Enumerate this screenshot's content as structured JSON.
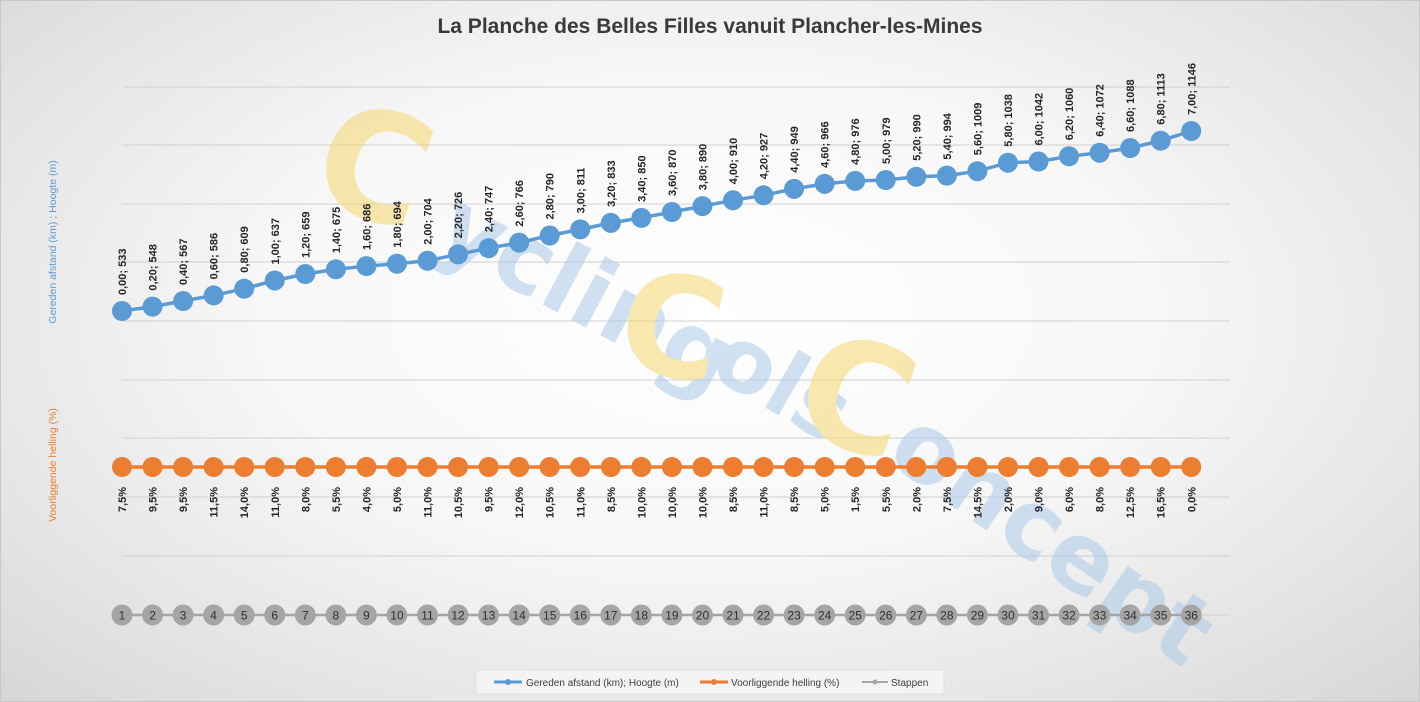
{
  "chart_data": {
    "type": "line",
    "title": "La Planche des Belles Filles vanuit Plancher-les-Mines",
    "ylabel_top": "Gereden afstand (km) ;  Hoogte (m)",
    "ylabel_bottom": "Voorliggende helling (%)",
    "grid": true,
    "legend_position": "bottom",
    "series": [
      {
        "name": "Gereden afstand (km); Hoogte (m)",
        "color": "#5b9bd5",
        "distance_km": [
          0.0,
          0.2,
          0.4,
          0.6,
          0.8,
          1.0,
          1.2,
          1.4,
          1.6,
          1.8,
          2.0,
          2.2,
          2.4,
          2.6,
          2.8,
          3.0,
          3.2,
          3.4,
          3.6,
          3.8,
          4.0,
          4.2,
          4.4,
          4.6,
          4.8,
          5.0,
          5.2,
          5.4,
          5.6,
          5.8,
          6.0,
          6.2,
          6.4,
          6.6,
          6.8,
          7.0
        ],
        "height_m": [
          533,
          548,
          567,
          586,
          609,
          637,
          659,
          675,
          686,
          694,
          704,
          726,
          747,
          766,
          790,
          811,
          833,
          850,
          870,
          890,
          910,
          927,
          949,
          966,
          976,
          979,
          990,
          994,
          1009,
          1038,
          1042,
          1060,
          1072,
          1088,
          1113,
          1146
        ],
        "labels": [
          "0,00; 533",
          "0,20; 548",
          "0,40; 567",
          "0,60; 586",
          "0,80; 609",
          "1,00; 637",
          "1,20; 659",
          "1,40; 675",
          "1,60; 686",
          "1,80; 694",
          "2,00; 704",
          "2,20; 726",
          "2,40; 747",
          "2,60; 766",
          "2,80; 790",
          "3,00; 811",
          "3,20; 833",
          "3,40; 850",
          "3,60; 870",
          "3,80; 890",
          "4,00; 910",
          "4,20; 927",
          "4,40; 949",
          "4,60; 966",
          "4,80; 976",
          "5,00; 979",
          "5,20; 990",
          "5,40; 994",
          "5,60; 1009",
          "5,80; 1038",
          "6,00; 1042",
          "6,20; 1060",
          "6,40; 1072",
          "6,60; 1088",
          "6,80; 1113",
          "7,00; 1146"
        ]
      },
      {
        "name": "Voorliggende helling (%)",
        "color": "#ed7d31",
        "labels": [
          "7,5%",
          "9,5%",
          "9,5%",
          "11,5%",
          "14,0%",
          "11,0%",
          "8,0%",
          "5,5%",
          "4,0%",
          "5,0%",
          "11,0%",
          "10,5%",
          "9,5%",
          "12,0%",
          "10,5%",
          "11,0%",
          "8,5%",
          "10,0%",
          "10,0%",
          "10,0%",
          "8,5%",
          "11,0%",
          "8,5%",
          "5,0%",
          "1,5%",
          "5,5%",
          "2,0%",
          "7,5%",
          "14,5%",
          "2,0%",
          "9,0%",
          "6,0%",
          "8,0%",
          "12,5%",
          "16,5%",
          "0,0%"
        ]
      },
      {
        "name": "Stappen",
        "color": "#a5a5a5",
        "labels": [
          "1",
          "2",
          "3",
          "4",
          "5",
          "6",
          "7",
          "8",
          "9",
          "10",
          "11",
          "12",
          "13",
          "14",
          "15",
          "16",
          "17",
          "18",
          "19",
          "20",
          "21",
          "22",
          "23",
          "24",
          "25",
          "26",
          "27",
          "28",
          "29",
          "30",
          "31",
          "32",
          "33",
          "34",
          "35",
          "36"
        ]
      }
    ]
  },
  "watermark": {
    "line1": "Cycling",
    "line2": "Cols",
    "line3": "Concept",
    "letter_color": "#f5d76e",
    "word_color": "#a9c9e8"
  }
}
